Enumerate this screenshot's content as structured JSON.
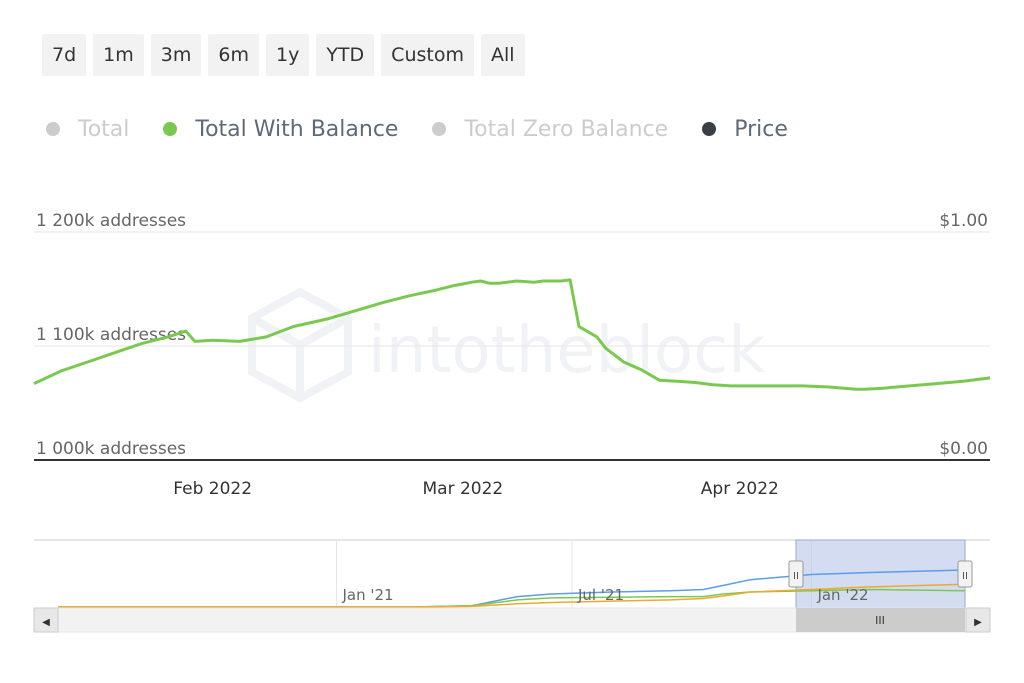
{
  "range_selector": {
    "buttons": [
      "7d",
      "1m",
      "3m",
      "6m",
      "1y",
      "YTD",
      "Custom",
      "All"
    ]
  },
  "legend": [
    {
      "label": "Total",
      "color": "#cccccc",
      "text_color": "#cccccc",
      "active": false
    },
    {
      "label": "Total With Balance",
      "color": "#7ac94f",
      "text_color": "#5e6a7a",
      "active": true
    },
    {
      "label": "Total Zero Balance",
      "color": "#cccccc",
      "text_color": "#cccccc",
      "active": false
    },
    {
      "label": "Price",
      "color": "#3a3f45",
      "text_color": "#5e6a7a",
      "active": true
    }
  ],
  "chart_data": [
    {
      "type": "line",
      "y_left_ticks": [
        "1 000k addresses",
        "1 100k addresses",
        "1 200k addresses"
      ],
      "y_right_ticks": [
        "$0.00",
        "$1.00"
      ],
      "x_ticks": [
        "Feb 2022",
        "Mar 2022",
        "Apr 2022"
      ],
      "grid": true,
      "ylim": [
        1000000,
        1200000
      ],
      "series": [
        {
          "name": "Total With Balance",
          "color": "#7ac94f",
          "x": [
            "2022-01-12",
            "2022-01-15",
            "2022-01-18",
            "2022-01-21",
            "2022-01-24",
            "2022-01-27",
            "2022-01-29",
            "2022-01-30",
            "2022-02-01",
            "2022-02-04",
            "2022-02-07",
            "2022-02-10",
            "2022-02-14",
            "2022-02-17",
            "2022-02-20",
            "2022-02-23",
            "2022-02-26",
            "2022-02-28",
            "2022-03-02",
            "2022-03-03",
            "2022-03-04",
            "2022-03-05",
            "2022-03-07",
            "2022-03-09",
            "2022-03-10",
            "2022-03-11",
            "2022-03-12",
            "2022-03-13",
            "2022-03-14",
            "2022-03-16",
            "2022-03-17",
            "2022-03-19",
            "2022-03-21",
            "2022-03-23",
            "2022-03-25",
            "2022-03-27",
            "2022-03-29",
            "2022-03-31",
            "2022-04-02",
            "2022-04-05",
            "2022-04-08",
            "2022-04-11",
            "2022-04-14",
            "2022-04-15",
            "2022-04-17",
            "2022-04-20",
            "2022-04-23",
            "2022-04-26",
            "2022-04-29"
          ],
          "y": [
            1067000,
            1078000,
            1086000,
            1094000,
            1102000,
            1108000,
            1113000,
            1104000,
            1105000,
            1104000,
            1108000,
            1117000,
            1124000,
            1131000,
            1138000,
            1144000,
            1149000,
            1153000,
            1156000,
            1157000,
            1155000,
            1155000,
            1157000,
            1156000,
            1157000,
            1157000,
            1157000,
            1158000,
            1117000,
            1108000,
            1098000,
            1086000,
            1079000,
            1070000,
            1069000,
            1068000,
            1066000,
            1065000,
            1065000,
            1065000,
            1065000,
            1064000,
            1062000,
            1062000,
            1063000,
            1065000,
            1067000,
            1069000,
            1072000
          ]
        }
      ]
    },
    {
      "type": "line",
      "x_ticks": [
        "Jan '21",
        "Jul '21",
        "Jan '22"
      ],
      "series": [
        {
          "name": "",
          "color": "#5b9de8",
          "x": [
            "2020-06-01",
            "2020-12-01",
            "2021-03-01",
            "2021-04-15",
            "2021-05-20",
            "2021-06-15",
            "2021-08-01",
            "2021-09-15",
            "2021-10-10",
            "2021-10-25",
            "2021-11-15",
            "2022-01-01",
            "2022-02-15",
            "2022-04-29"
          ],
          "y": [
            0,
            0,
            0,
            0.02,
            0.16,
            0.2,
            0.23,
            0.25,
            0.27,
            0.33,
            0.42,
            0.5,
            0.53,
            0.57
          ]
        },
        {
          "name": "",
          "color": "#7ac94f",
          "x": [
            "2020-06-01",
            "2020-12-01",
            "2021-03-01",
            "2021-04-15",
            "2021-05-20",
            "2021-06-15",
            "2021-08-01",
            "2021-09-15",
            "2021-10-10",
            "2021-10-25",
            "2021-11-15",
            "2022-01-01",
            "2022-02-15",
            "2022-04-29"
          ],
          "y": [
            0,
            0,
            0,
            0.02,
            0.11,
            0.14,
            0.15,
            0.16,
            0.16,
            0.2,
            0.23,
            0.25,
            0.27,
            0.25
          ]
        },
        {
          "name": "",
          "color": "#f0a830",
          "x": [
            "2020-06-01",
            "2020-12-01",
            "2021-03-01",
            "2021-04-15",
            "2021-05-20",
            "2021-06-15",
            "2021-08-01",
            "2021-09-15",
            "2021-10-10",
            "2021-10-25",
            "2021-11-15",
            "2022-01-01",
            "2022-02-15",
            "2022-04-29"
          ],
          "y": [
            0,
            0,
            0,
            0.01,
            0.05,
            0.07,
            0.09,
            0.11,
            0.13,
            0.17,
            0.23,
            0.27,
            0.31,
            0.35
          ]
        }
      ]
    }
  ],
  "watermark": "intotheblock",
  "navigator": {
    "handle_glyph": "II",
    "scrollbar_grip": "III",
    "left_arrow": "◀",
    "right_arrow": "▶"
  }
}
